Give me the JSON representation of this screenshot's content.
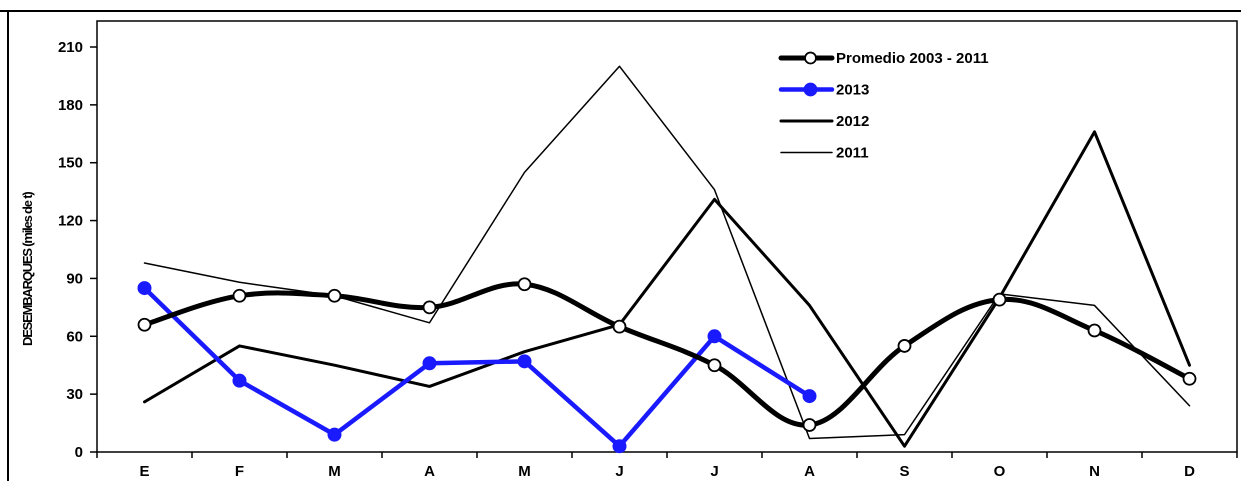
{
  "chart_data": {
    "type": "line",
    "ylabel": "DESEMBARQUES (miles de t)",
    "xlabel": "",
    "categories": [
      "E",
      "F",
      "M",
      "A",
      "M",
      "J",
      "J",
      "A",
      "S",
      "O",
      "N",
      "D"
    ],
    "ylim": [
      0,
      210
    ],
    "yticks": [
      0,
      30,
      60,
      90,
      120,
      150,
      180,
      210
    ],
    "grid": false,
    "legend_position": "top-right",
    "series": [
      {
        "name": "Promedio 2003 - 2011",
        "values": [
          66,
          81,
          81,
          75,
          87,
          65,
          45,
          14,
          55,
          79,
          63,
          38
        ],
        "color": "#000000",
        "style": "thick-with-open-markers"
      },
      {
        "name": "2013",
        "values": [
          85,
          37,
          9,
          46,
          47,
          3,
          60,
          29,
          null,
          null,
          null,
          null
        ],
        "color": "#1a1aff",
        "style": "thick-with-filled-markers"
      },
      {
        "name": "2012",
        "values": [
          26,
          55,
          45,
          34,
          52,
          66,
          131,
          76,
          3,
          80,
          166,
          45
        ],
        "color": "#000000",
        "style": "medium"
      },
      {
        "name": "2011",
        "values": [
          98,
          88,
          81,
          67,
          145,
          200,
          136,
          7,
          9,
          82,
          76,
          24
        ],
        "color": "#000000",
        "style": "thin"
      }
    ]
  }
}
